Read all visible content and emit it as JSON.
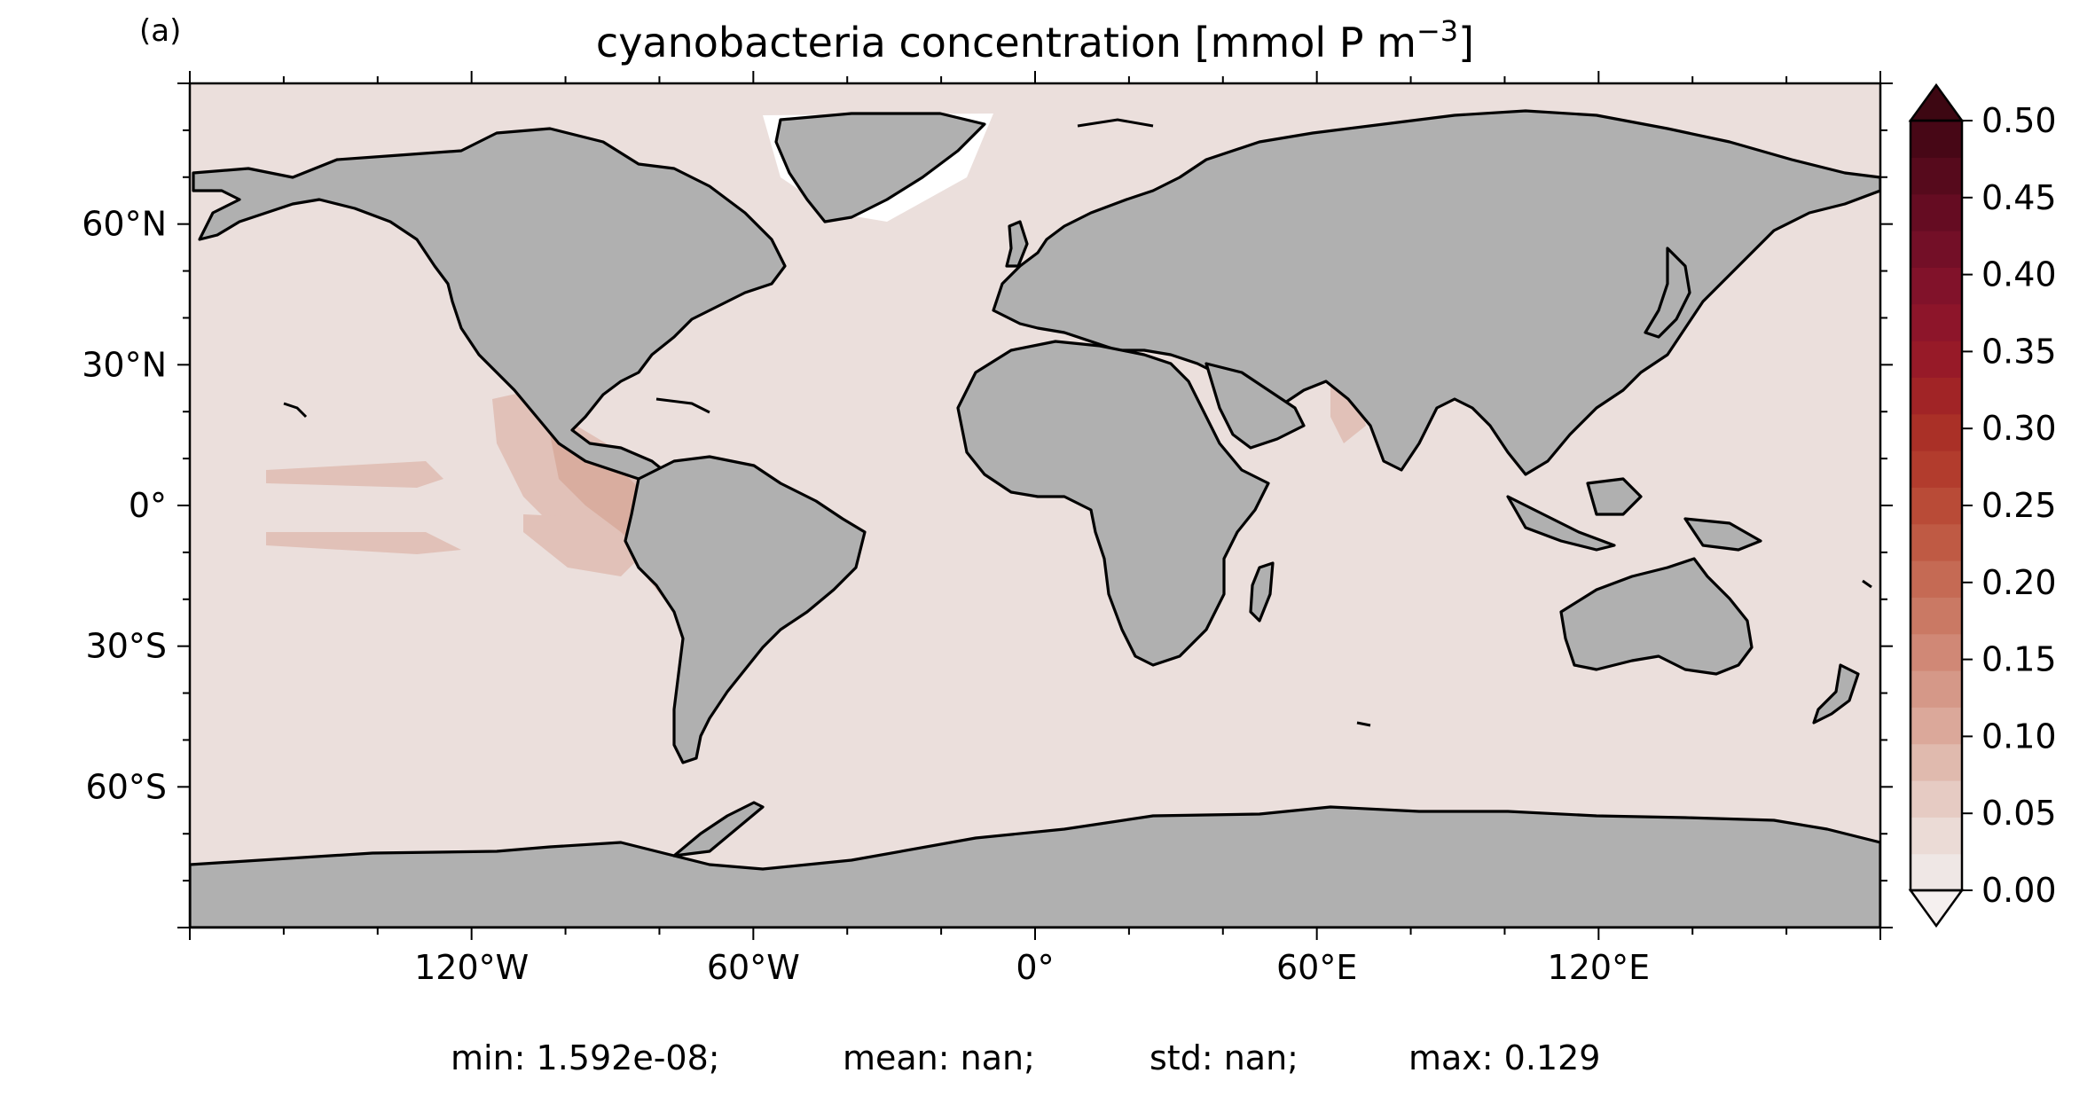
{
  "panel_label": "(a)",
  "title": {
    "prefix": "cyanobacteria concentration [mmol P m",
    "superscript": "−3",
    "suffix": "]"
  },
  "map": {
    "projection": "equirectangular",
    "lon_range": [
      -180,
      180
    ],
    "lat_range": [
      -90,
      90
    ],
    "ocean_color": "#ebdfdc",
    "land_color": "#b0b0b0",
    "coastline_color": "#000000"
  },
  "y_ticks": [
    {
      "lat": 60,
      "label": "60°N"
    },
    {
      "lat": 30,
      "label": "30°N"
    },
    {
      "lat": 0,
      "label": "0°"
    },
    {
      "lat": -30,
      "label": "30°S"
    },
    {
      "lat": -60,
      "label": "60°S"
    }
  ],
  "x_ticks": [
    {
      "lon": -120,
      "label": "120°W"
    },
    {
      "lon": -60,
      "label": "60°W"
    },
    {
      "lon": 0,
      "label": "0°"
    },
    {
      "lon": 60,
      "label": "60°E"
    },
    {
      "lon": 120,
      "label": "120°E"
    }
  ],
  "colorbar": {
    "min": 0.0,
    "max": 0.5,
    "extend": "both",
    "tick_labels": [
      "0.00",
      "0.05",
      "0.10",
      "0.15",
      "0.20",
      "0.25",
      "0.30",
      "0.35",
      "0.40",
      "0.45",
      "0.50"
    ],
    "colors": [
      "#efe7e5",
      "#ebdbd6",
      "#e6cbc3",
      "#e0baae",
      "#dba89a",
      "#d59888",
      "#d08876",
      "#ca7964",
      "#c56a54",
      "#bf5a44",
      "#b94b37",
      "#b23c2d",
      "#aa3027",
      "#a12426",
      "#971a28",
      "#8d152a",
      "#81122a",
      "#730f27",
      "#650c22",
      "#560a1c",
      "#470716"
    ],
    "over_color": "#3d0712",
    "under_color": "#f5f0ef"
  },
  "stats": [
    {
      "label": "min: 1.592e-08;"
    },
    {
      "label": "mean: nan;"
    },
    {
      "label": "std: nan;"
    },
    {
      "label": "max: 0.129"
    }
  ]
}
